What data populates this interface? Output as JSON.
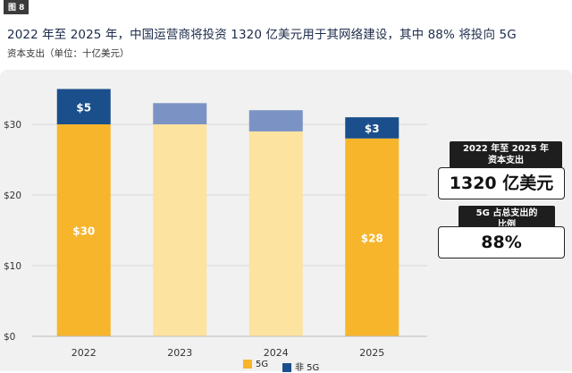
{
  "figure_badge": "图 8",
  "title": "2022 年至 2025 年，中国运营商将投资 1320 亿美元用于其网络建设，其中 88% 将投向 5G",
  "subtitle": "资本支出（单位：十亿美元）",
  "callouts": [
    {
      "label": "2022 年至 2025 年\n资本支出",
      "value": "1320 亿美元"
    },
    {
      "label": "5G 占总支出的\n比例",
      "value": "88%"
    }
  ],
  "legend": [
    {
      "name": "5G",
      "color": "#f7b52c"
    },
    {
      "name": "非 5G",
      "color": "#1a4f8b"
    }
  ],
  "chart_data": {
    "type": "bar",
    "stacked": true,
    "categories": [
      "2022",
      "2023",
      "2024",
      "2025"
    ],
    "series": [
      {
        "name": "5G",
        "values": [
          30,
          30,
          29,
          28
        ],
        "colors": [
          "#f7b52c",
          "#fde3a0",
          "#fde3a0",
          "#f7b52c"
        ]
      },
      {
        "name": "非 5G",
        "values": [
          5,
          3,
          3,
          3
        ],
        "colors": [
          "#1a4f8b",
          "#7b93c4",
          "#7b93c4",
          "#1a4f8b"
        ]
      }
    ],
    "data_labels": [
      {
        "series": "5G",
        "category": "2022",
        "text": "$30"
      },
      {
        "series": "非 5G",
        "category": "2022",
        "text": "$5"
      },
      {
        "series": "5G",
        "category": "2025",
        "text": "$28"
      },
      {
        "series": "非 5G",
        "category": "2025",
        "text": "$3"
      }
    ],
    "yticks": [
      {
        "value": 0,
        "label": "$0"
      },
      {
        "value": 10,
        "label": "$10"
      },
      {
        "value": 20,
        "label": "$20"
      },
      {
        "value": 30,
        "label": "$30"
      }
    ],
    "ylim": [
      0,
      40
    ],
    "grid": true,
    "legend_position": "bottom"
  }
}
